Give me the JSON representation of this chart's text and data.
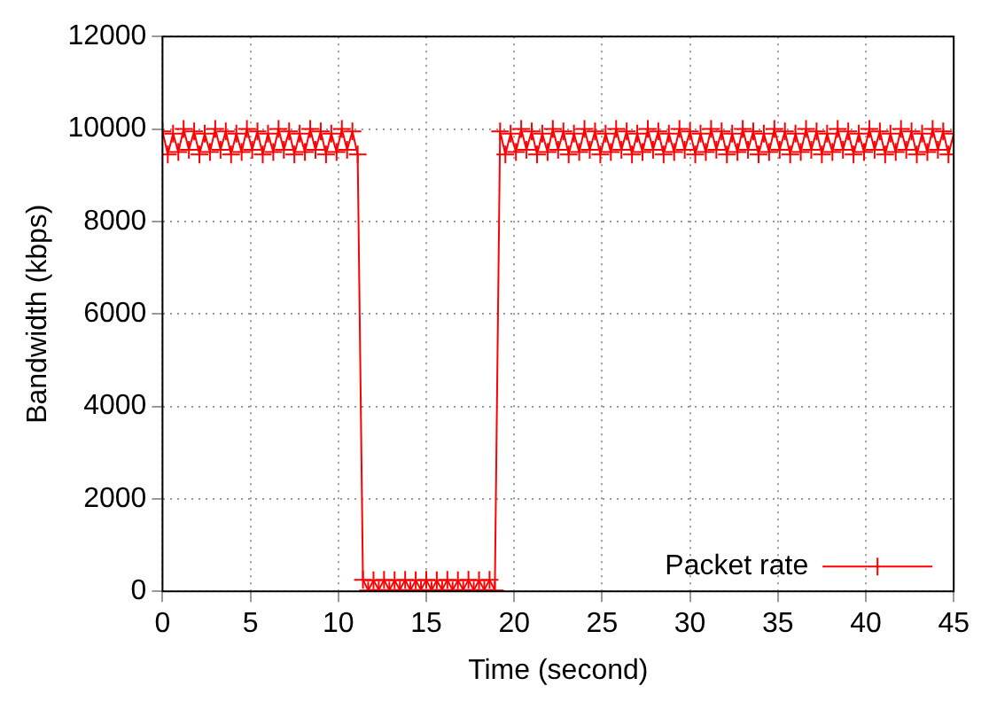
{
  "chart_data": {
    "type": "line",
    "xlabel": "Time (second)",
    "ylabel": "Bandwidth (kbps)",
    "xlim": [
      0,
      45
    ],
    "xticks": [
      0,
      5,
      10,
      15,
      20,
      25,
      30,
      35,
      40,
      45
    ],
    "ylim": [
      0,
      12000
    ],
    "yticks": [
      0,
      2000,
      4000,
      6000,
      8000,
      10000,
      12000
    ],
    "grid": true,
    "legend": "bottom right",
    "marker": "cross",
    "line_style": "solid",
    "series": [
      {
        "name": "Packet rate",
        "color": "#ff0000",
        "x": [
          0,
          0.3,
          0.6,
          0.9,
          1.2,
          1.5,
          1.8,
          2.1,
          2.4,
          2.7,
          3,
          3.3,
          3.6,
          3.9,
          4.2,
          4.5,
          4.8,
          5.1,
          5.4,
          5.7,
          6,
          6.3,
          6.6,
          6.9,
          7.2,
          7.5,
          7.8,
          8.1,
          8.4,
          8.7,
          9,
          9.3,
          9.6,
          9.9,
          10.2,
          10.5,
          10.8,
          11.1,
          11.4,
          11.7,
          12,
          12.3,
          12.6,
          12.9,
          13.2,
          13.5,
          13.8,
          14.1,
          14.4,
          14.7,
          15,
          15.3,
          15.6,
          15.9,
          16.2,
          16.5,
          16.8,
          17.1,
          17.4,
          17.7,
          18,
          18.3,
          18.6,
          18.9,
          19.2,
          19.5,
          19.8,
          20.1,
          20.4,
          20.7,
          21,
          21.3,
          21.6,
          21.9,
          22.2,
          22.5,
          22.8,
          23.1,
          23.4,
          23.7,
          24,
          24.3,
          24.6,
          24.9,
          25.2,
          25.5,
          25.8,
          26.1,
          26.4,
          26.7,
          27,
          27.3,
          27.6,
          27.9,
          28.2,
          28.5,
          28.8,
          29.1,
          29.4,
          29.7,
          30,
          30.3,
          30.6,
          30.9,
          31.2,
          31.5,
          31.8,
          32.1,
          32.4,
          32.7,
          33,
          33.3,
          33.6,
          33.9,
          34.2,
          34.5,
          34.8,
          35.1,
          35.4,
          35.7,
          36,
          36.3,
          36.6,
          36.9,
          37.2,
          37.5,
          37.8,
          38.1,
          38.4,
          38.7,
          39,
          39.3,
          39.6,
          39.9,
          40.2,
          40.5,
          40.8,
          41.1,
          41.4,
          41.7,
          42,
          42.3,
          42.6,
          42.9,
          43.2,
          43.5,
          43.8,
          44.1,
          44.4,
          44.7,
          45
        ],
        "values": [
          9950,
          9450,
          9900,
          9500,
          10000,
          9550,
          9950,
          9450,
          9900,
          9500,
          10000,
          9550,
          9950,
          9450,
          9900,
          9500,
          10000,
          9550,
          9950,
          9450,
          9900,
          9500,
          10000,
          9550,
          9950,
          9450,
          9900,
          9500,
          10000,
          9550,
          9950,
          9450,
          9900,
          9500,
          10000,
          9550,
          9950,
          9450,
          250,
          20,
          240,
          30,
          250,
          20,
          240,
          30,
          250,
          20,
          240,
          30,
          250,
          20,
          240,
          30,
          250,
          20,
          240,
          30,
          250,
          20,
          240,
          30,
          250,
          20,
          9950,
          9450,
          9900,
          9500,
          10000,
          9550,
          9950,
          9450,
          9900,
          9500,
          10000,
          9550,
          9950,
          9450,
          9900,
          9500,
          10000,
          9550,
          9950,
          9450,
          9900,
          9500,
          10000,
          9550,
          9950,
          9450,
          9900,
          9500,
          10000,
          9550,
          9950,
          9450,
          9900,
          9500,
          10000,
          9550,
          9950,
          9450,
          9900,
          9500,
          10000,
          9550,
          9950,
          9450,
          9900,
          9500,
          10000,
          9550,
          9950,
          9450,
          9900,
          9500,
          10000,
          9550,
          9950,
          9450,
          9900,
          9500,
          10000,
          9550,
          9950,
          9450,
          9900,
          9500,
          10000,
          9550,
          9950,
          9450,
          9900,
          9500,
          10000,
          9550,
          9950,
          9450,
          9900,
          9500,
          10000,
          9550,
          9950,
          9450,
          9900,
          9500,
          10000,
          9550,
          9950,
          9450,
          9900
        ]
      }
    ]
  }
}
